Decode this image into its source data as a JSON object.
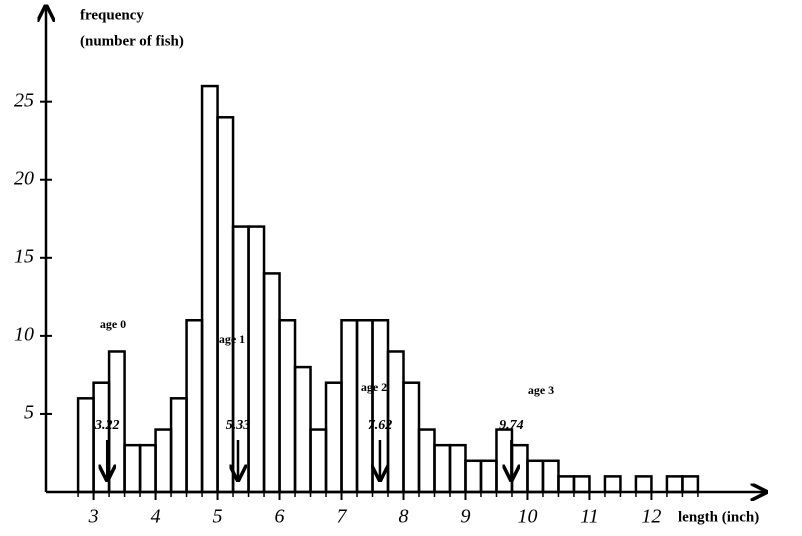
{
  "chart_data": {
    "type": "histogram",
    "ylabel": [
      "frequency",
      "(number of fish)"
    ],
    "xlabel": "length (inch)",
    "bins": [
      2.75,
      3,
      3.25,
      3.5,
      3.75,
      4,
      4.25,
      4.5,
      4.75,
      5,
      5.25,
      5.5,
      5.75,
      6,
      6.25,
      6.5,
      6.75,
      7,
      7.25,
      7.5,
      7.75,
      8,
      8.25,
      8.5,
      8.75,
      9,
      9.25,
      9.5,
      9.75,
      10,
      10.25,
      10.5,
      10.75,
      11,
      11.25,
      11.5,
      11.75,
      12,
      12.25,
      12.5,
      12.75
    ],
    "values": [
      6,
      7,
      9,
      3,
      3,
      4,
      6,
      11,
      26,
      24,
      17,
      17,
      14,
      11,
      8,
      4,
      7,
      11,
      11,
      11,
      9,
      7,
      4,
      3,
      3,
      2,
      2,
      4,
      3,
      2,
      2,
      1,
      1,
      0,
      1,
      0,
      1,
      0,
      1,
      1
    ],
    "color": "#000000",
    "xlim": [
      2.2,
      13.8
    ],
    "ylim": [
      0,
      31
    ],
    "xticks": [
      3,
      4,
      5,
      6,
      7,
      8,
      9,
      10,
      11,
      12
    ],
    "yticks": [
      5,
      10,
      15,
      20,
      25
    ],
    "annotations": [
      "age 0",
      "age 1",
      "age 2",
      "age 3"
    ],
    "markers": [
      3.22,
      5.33,
      7.62,
      9.74
    ]
  }
}
